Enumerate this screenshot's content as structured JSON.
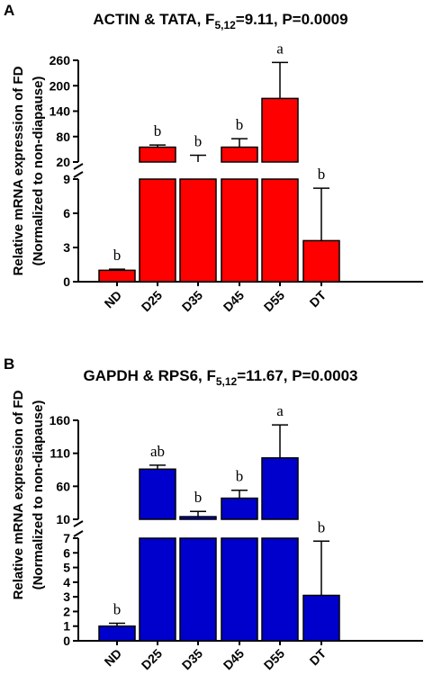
{
  "panels": [
    {
      "letter": "A",
      "title_main": "ACTIN & TATA, F",
      "title_sub": "5,12",
      "title_rest": "=9.11, P=0.0009",
      "color": "#ff0000"
    },
    {
      "letter": "B",
      "title_main": "GAPDH & RPS6, F",
      "title_sub": "5,12",
      "title_rest": "=11.67, P=0.0003",
      "color": "#0000cc"
    }
  ],
  "chart_data": [
    {
      "type": "bar",
      "title": "ACTIN & TATA, F5,12=9.11, P=0.0009",
      "ylabel_line1": "Relative mRNA expression of FD",
      "ylabel_line2": "(Normalized to non-diapause)",
      "categories": [
        "ND",
        "D25",
        "D35",
        "D45",
        "D55",
        "DT"
      ],
      "values": [
        1.0,
        55,
        20,
        55,
        170,
        3.6
      ],
      "error_upper": [
        1.1,
        60,
        36,
        75,
        255,
        8.2
      ],
      "significance": [
        "b",
        "b",
        "b",
        "b",
        "a",
        "b"
      ],
      "bar_color": "#ff0000",
      "y_axis_broken": true,
      "lower_segment": {
        "ylim": [
          0,
          9
        ],
        "ticks": [
          "0",
          "3",
          "6",
          "9"
        ]
      },
      "upper_segment": {
        "ylim": [
          20,
          260
        ],
        "ticks": [
          "20",
          "80",
          "140",
          "200",
          "260"
        ]
      }
    },
    {
      "type": "bar",
      "title": "GAPDH & RPS6, F5,12=11.67, P=0.0003",
      "ylabel_line1": "Relative mRNA expression of FD",
      "ylabel_line2": "(Normalized to non-diapause)",
      "categories": [
        "ND",
        "D25",
        "D35",
        "D45",
        "D55",
        "DT"
      ],
      "values": [
        1.0,
        86,
        14,
        42,
        103,
        3.1
      ],
      "error_upper": [
        1.2,
        92,
        22,
        54,
        153,
        6.8
      ],
      "significance": [
        "b",
        "ab",
        "b",
        "b",
        "a",
        "b"
      ],
      "bar_color": "#0000cc",
      "y_axis_broken": true,
      "lower_segment": {
        "ylim": [
          0,
          7
        ],
        "ticks": [
          "0",
          "1",
          "2",
          "3",
          "4",
          "5",
          "6",
          "7"
        ]
      },
      "upper_segment": {
        "ylim": [
          10,
          160
        ],
        "ticks": [
          "10",
          "60",
          "110",
          "160"
        ]
      }
    }
  ]
}
